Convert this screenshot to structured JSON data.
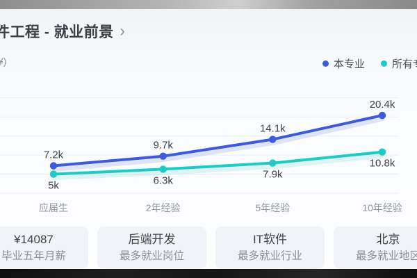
{
  "header": {
    "title": "件工程 - 就业前景",
    "chevron": "›"
  },
  "chart_data": {
    "type": "line",
    "title": "件工程 - 就业前景",
    "unit_label": "¥)",
    "categories": [
      "应届生",
      "2年经验",
      "5年经验",
      "10年经验"
    ],
    "series": [
      {
        "name": "本专业",
        "color": "#3D5ADB",
        "values": [
          7200,
          9700,
          14100,
          20400
        ],
        "labels": [
          "7.2k",
          "9.7k",
          "14.1k",
          "20.4k"
        ],
        "label_position": "above"
      },
      {
        "name": "所有专业",
        "color": "#1FC9C4",
        "values": [
          5000,
          6300,
          7900,
          10800
        ],
        "labels": [
          "5k",
          "6.3k",
          "7.9k",
          "10.8k"
        ],
        "label_position": "below"
      }
    ],
    "ylim": [
      0,
      25000
    ],
    "gridline_values": [
      0,
      5000,
      10000,
      15000,
      20000,
      25000
    ],
    "grid": true,
    "legend_position": "top-right",
    "colors": {
      "grid": "#e9edf2",
      "data_label": "#3d4147",
      "axis_label": "#8f95a0"
    }
  },
  "stats": [
    {
      "value": "¥14087",
      "label": "毕业五年月薪"
    },
    {
      "value": "后端开发",
      "label": "最多就业岗位"
    },
    {
      "value": "IT软件",
      "label": "最多就业行业"
    },
    {
      "value": "北京",
      "label": "最多就业地区"
    }
  ]
}
